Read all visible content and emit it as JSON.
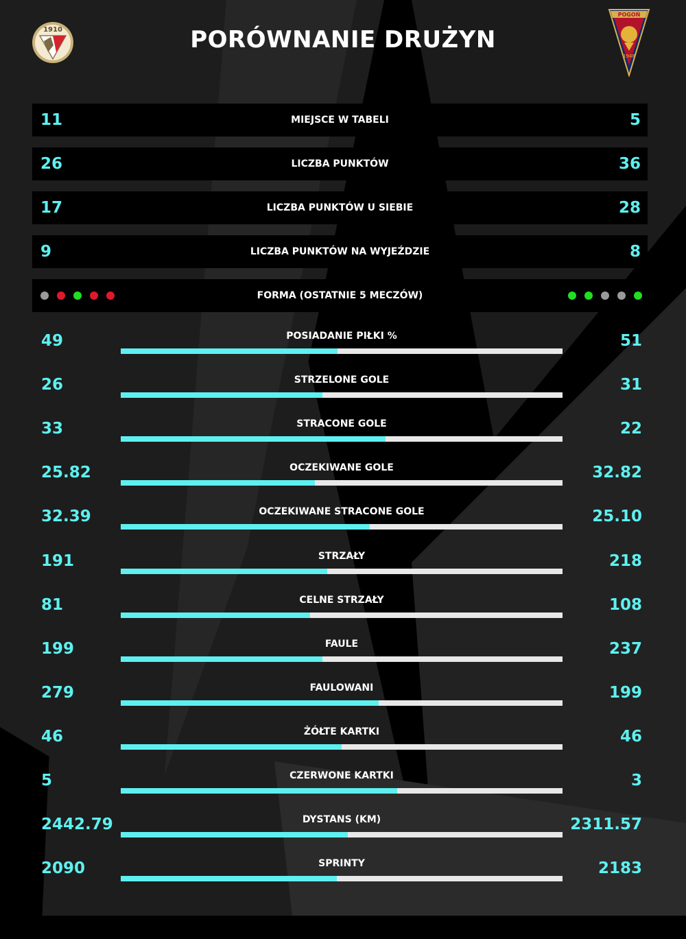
{
  "title": "PORÓWNANIE DRUŻYN",
  "colors": {
    "accent": "#5ef0f0",
    "bar_track": "#e8e8e8",
    "form_win": "#22dd22",
    "form_draw": "#9a9a9a",
    "form_loss": "#e0182d"
  },
  "logos": {
    "left": {
      "icon": "club-crest-icon",
      "lettering": "1910"
    },
    "right": {
      "icon": "pogon-crest-icon",
      "lettering": "POGOŃ 1948"
    }
  },
  "summary_rows": [
    {
      "label": "MIEJSCE W TABELI",
      "left": "11",
      "right": "5"
    },
    {
      "label": "LICZBA PUNKTÓW",
      "left": "26",
      "right": "36"
    },
    {
      "label": "LICZBA PUNKTÓW U SIEBIE",
      "left": "17",
      "right": "28"
    },
    {
      "label": "LICZBA PUNKTÓW NA WYJEŹDZIE",
      "left": "9",
      "right": "8"
    }
  ],
  "form": {
    "label": "FORMA (OSTATNIE 5 MECZÓW)",
    "left": [
      "draw",
      "loss",
      "win",
      "loss",
      "loss"
    ],
    "right": [
      "win",
      "win",
      "draw",
      "draw",
      "win"
    ]
  },
  "bar_rows": [
    {
      "label": "POSIADANIE PIŁKI %",
      "left": "49",
      "right": "51",
      "left_share": 0.49
    },
    {
      "label": "STRZELONE GOLE",
      "left": "26",
      "right": "31",
      "left_share": 0.456
    },
    {
      "label": "STRACONE GOLE",
      "left": "33",
      "right": "22",
      "left_share": 0.6
    },
    {
      "label": "OCZEKIWANE GOLE",
      "left": "25.82",
      "right": "32.82",
      "left_share": 0.44
    },
    {
      "label": "OCZEKIWANE STRACONE GOLE",
      "left": "32.39",
      "right": "25.10",
      "left_share": 0.563
    },
    {
      "label": "STRZAŁY",
      "left": "191",
      "right": "218",
      "left_share": 0.467
    },
    {
      "label": "CELNE STRZAŁY",
      "left": "81",
      "right": "108",
      "left_share": 0.429
    },
    {
      "label": "FAULE",
      "left": "199",
      "right": "237",
      "left_share": 0.456
    },
    {
      "label": "FAULOWANI",
      "left": "279",
      "right": "199",
      "left_share": 0.584
    },
    {
      "label": "ŻÓŁTE KARTKI",
      "left": "46",
      "right": "46",
      "left_share": 0.5
    },
    {
      "label": "CZERWONE KARTKI",
      "left": "5",
      "right": "3",
      "left_share": 0.625
    },
    {
      "label": "DYSTANS (KM)",
      "left": "2442.79",
      "right": "2311.57",
      "left_share": 0.514
    },
    {
      "label": "SPRINTY",
      "left": "2090",
      "right": "2183",
      "left_share": 0.489
    }
  ]
}
